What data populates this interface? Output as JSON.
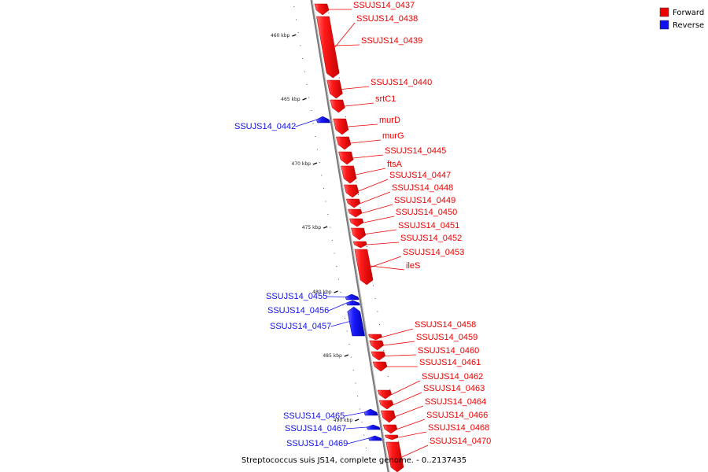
{
  "caption": "Streptococcus suis JS14, complete genome. - 0..2137435",
  "legend": [
    {
      "label": "Forward",
      "color": "#ee0000"
    },
    {
      "label": "Reverse",
      "color": "#1111ee"
    }
  ],
  "colors": {
    "forward": "#ee0000",
    "reverse": "#1111ee",
    "backbone": "#8a8a8a"
  },
  "ticks": [
    "460 kbp",
    "465 kbp",
    "470 kbp",
    "475 kbp",
    "480 kbp",
    "485 kbp",
    "490 kbp"
  ],
  "chart_data": {
    "type": "diagram",
    "axis_unit": "kbp",
    "genes": [
      {
        "name": "SSUJS14_0437",
        "strand": "forward"
      },
      {
        "name": "SSUJS14_0438",
        "strand": "forward"
      },
      {
        "name": "SSUJS14_0439",
        "strand": "forward"
      },
      {
        "name": "SSUJS14_0440",
        "strand": "forward"
      },
      {
        "name": "srtC1",
        "strand": "forward"
      },
      {
        "name": "SSUJS14_0442",
        "strand": "reverse"
      },
      {
        "name": "murD",
        "strand": "forward"
      },
      {
        "name": "murG",
        "strand": "forward"
      },
      {
        "name": "SSUJS14_0445",
        "strand": "forward"
      },
      {
        "name": "ftsA",
        "strand": "forward"
      },
      {
        "name": "SSUJS14_0447",
        "strand": "forward"
      },
      {
        "name": "SSUJS14_0448",
        "strand": "forward"
      },
      {
        "name": "SSUJS14_0449",
        "strand": "forward"
      },
      {
        "name": "SSUJS14_0450",
        "strand": "forward"
      },
      {
        "name": "SSUJS14_0451",
        "strand": "forward"
      },
      {
        "name": "SSUJS14_0452",
        "strand": "forward"
      },
      {
        "name": "SSUJS14_0453",
        "strand": "forward"
      },
      {
        "name": "ileS",
        "strand": "forward"
      },
      {
        "name": "SSUJS14_0455",
        "strand": "reverse"
      },
      {
        "name": "SSUJS14_0456",
        "strand": "reverse"
      },
      {
        "name": "SSUJS14_0457",
        "strand": "reverse"
      },
      {
        "name": "SSUJS14_0458",
        "strand": "forward"
      },
      {
        "name": "SSUJS14_0459",
        "strand": "forward"
      },
      {
        "name": "SSUJS14_0460",
        "strand": "forward"
      },
      {
        "name": "SSUJS14_0461",
        "strand": "forward"
      },
      {
        "name": "SSUJS14_0462",
        "strand": "forward"
      },
      {
        "name": "SSUJS14_0463",
        "strand": "forward"
      },
      {
        "name": "SSUJS14_0464",
        "strand": "forward"
      },
      {
        "name": "SSUJS14_0465",
        "strand": "reverse"
      },
      {
        "name": "SSUJS14_0466",
        "strand": "forward"
      },
      {
        "name": "SSUJS14_0467",
        "strand": "reverse"
      },
      {
        "name": "SSUJS14_0468",
        "strand": "forward"
      },
      {
        "name": "SSUJS14_0469",
        "strand": "reverse"
      },
      {
        "name": "SSUJS14_0470",
        "strand": "forward"
      }
    ]
  }
}
